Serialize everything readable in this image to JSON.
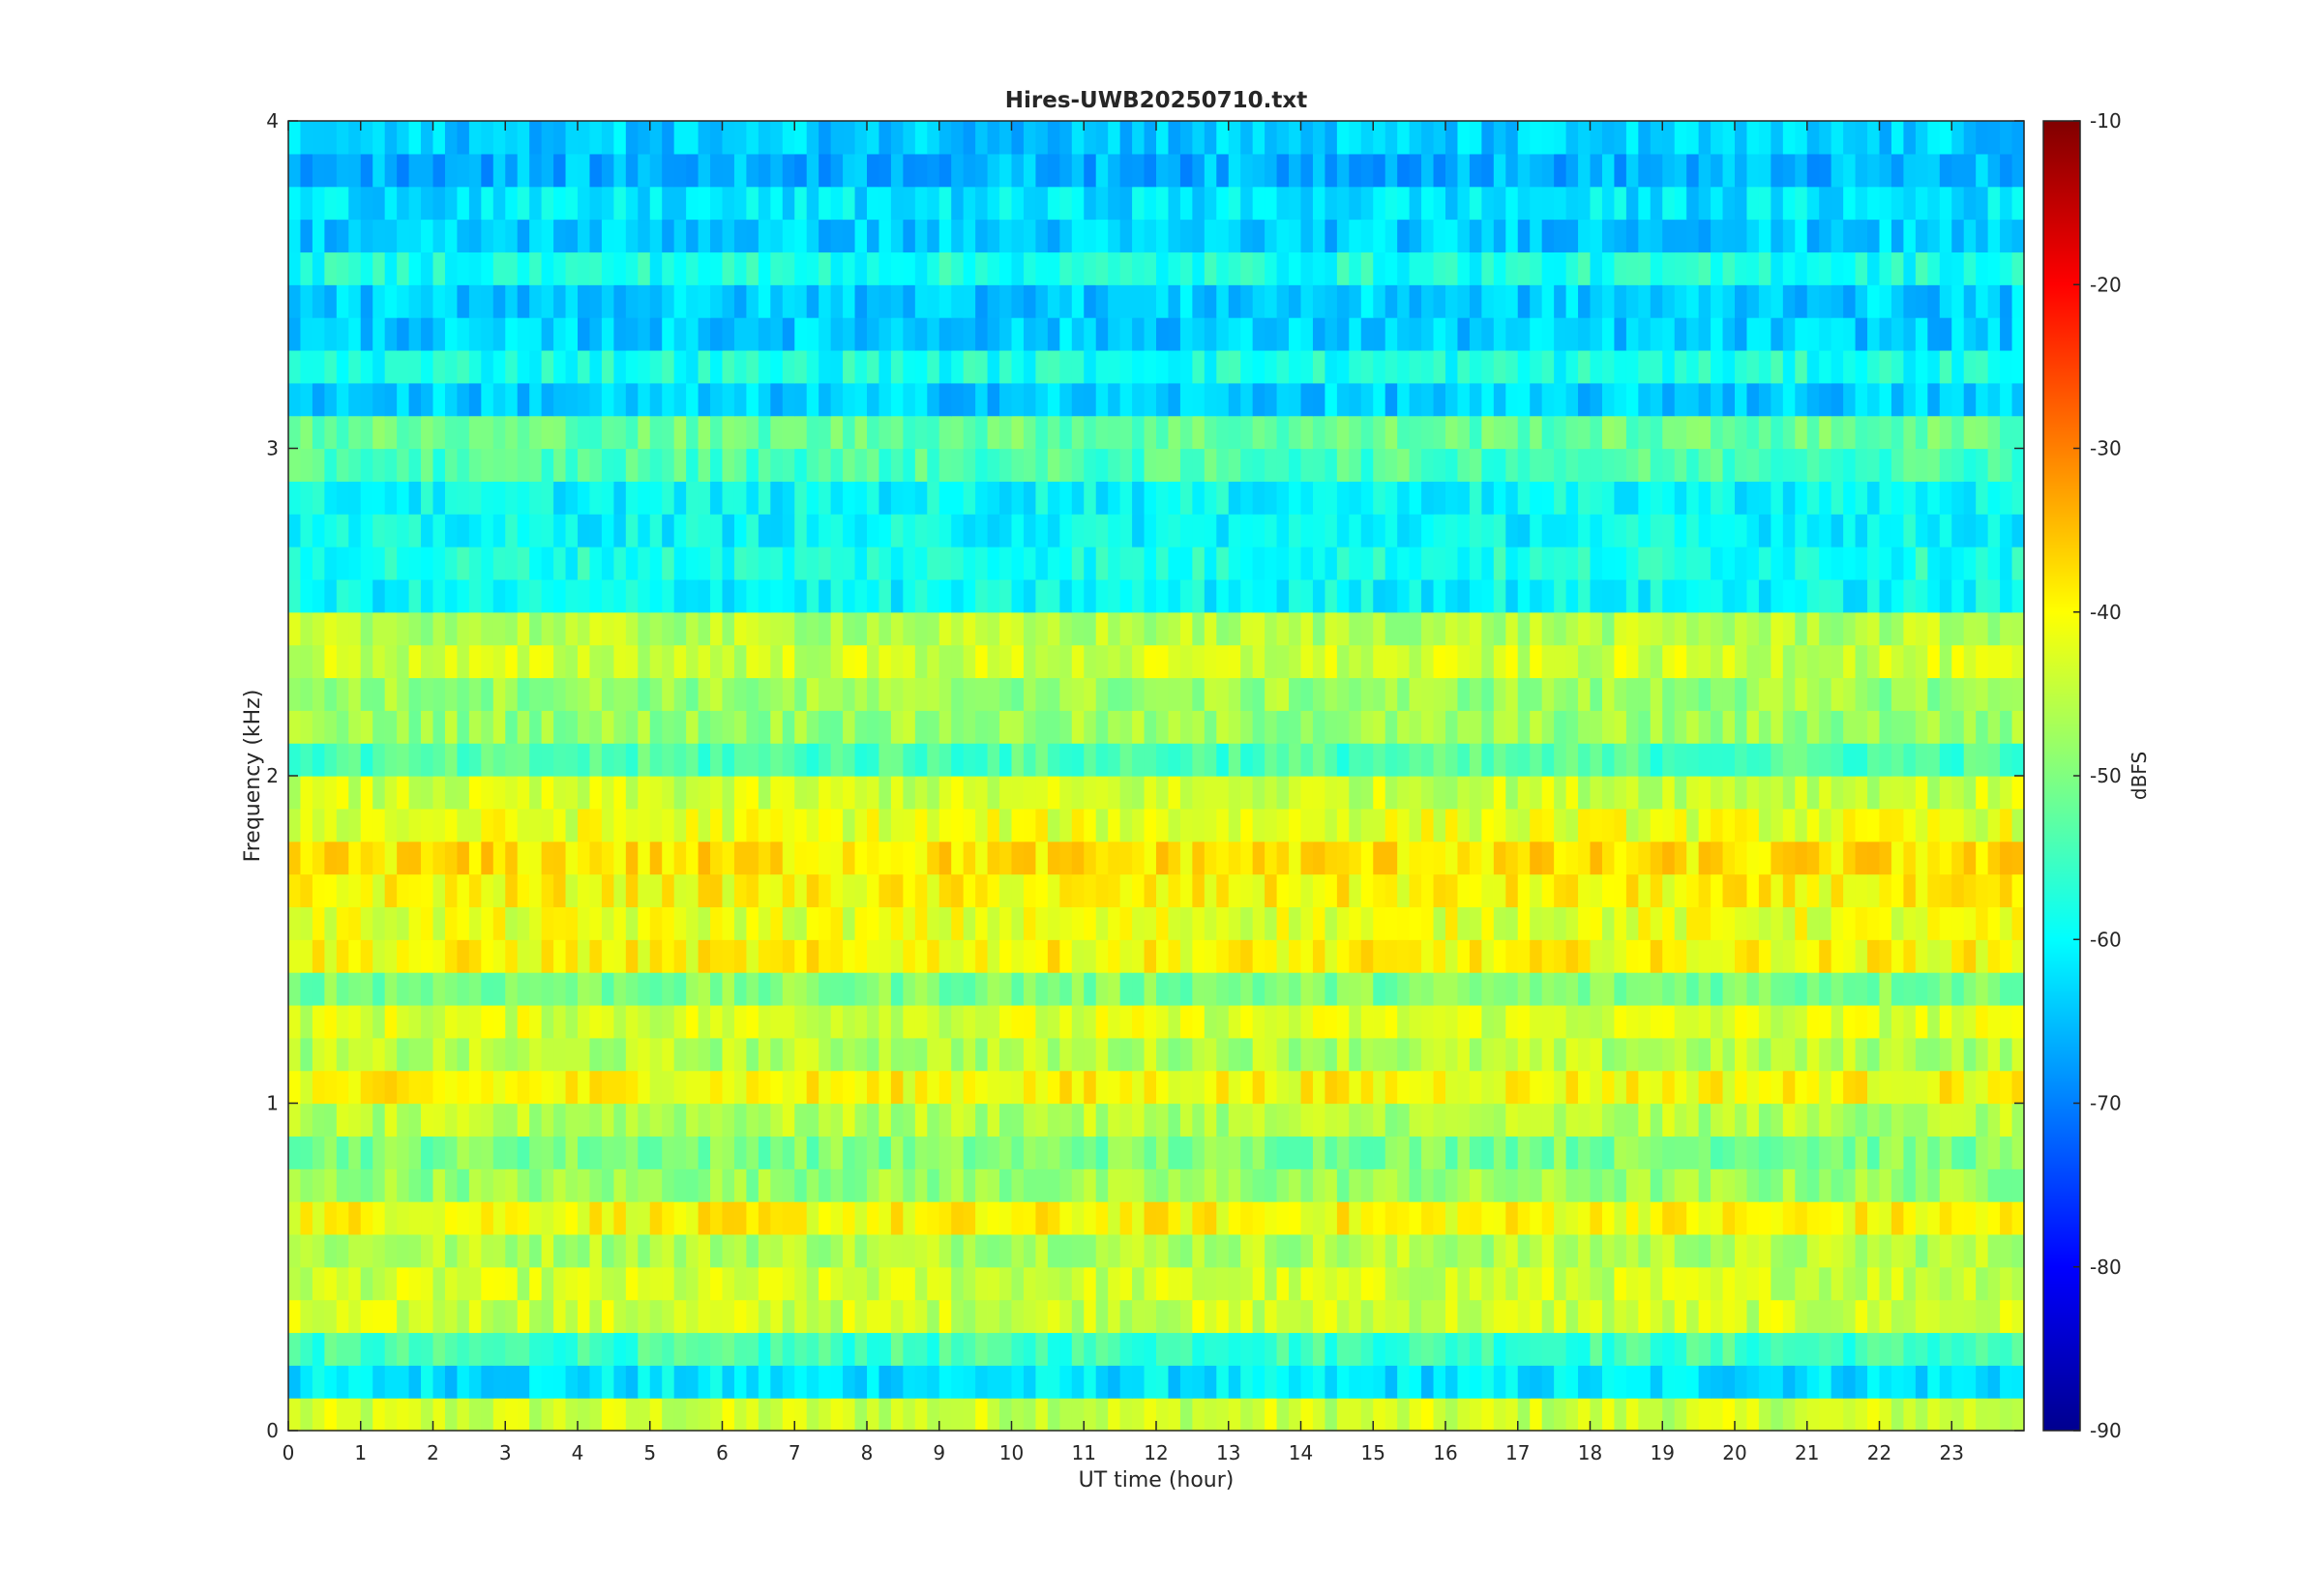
{
  "chart_data": {
    "type": "heatmap",
    "title": "Hires-UWB20250710.txt",
    "xlabel": "UT time (hour)",
    "ylabel": "Frequency (kHz)",
    "xlim": [
      0,
      24
    ],
    "ylim": [
      0,
      4
    ],
    "x_ticks": [
      "0",
      "1",
      "2",
      "3",
      "4",
      "5",
      "6",
      "7",
      "8",
      "9",
      "10",
      "11",
      "12",
      "13",
      "14",
      "15",
      "16",
      "17",
      "18",
      "19",
      "20",
      "21",
      "22",
      "23"
    ],
    "y_ticks": [
      "0",
      "1",
      "2",
      "3",
      "4"
    ],
    "colormap": "jet",
    "colorbar": {
      "label": "dBFS",
      "range": [
        -90,
        -10
      ],
      "ticks": [
        "-90",
        "-80",
        "-70",
        "-60",
        "-50",
        "-40",
        "-30",
        "-20",
        "-10"
      ]
    },
    "band_levels_dBFS": [
      {
        "freq_khz": 0.05,
        "level": -44
      },
      {
        "freq_khz": 0.15,
        "level": -62
      },
      {
        "freq_khz": 0.25,
        "level": -55
      },
      {
        "freq_khz": 0.35,
        "level": -44
      },
      {
        "freq_khz": 0.45,
        "level": -44
      },
      {
        "freq_khz": 0.55,
        "level": -46
      },
      {
        "freq_khz": 0.65,
        "level": -40
      },
      {
        "freq_khz": 0.75,
        "level": -48
      },
      {
        "freq_khz": 0.85,
        "level": -50
      },
      {
        "freq_khz": 0.95,
        "level": -46
      },
      {
        "freq_khz": 1.05,
        "level": -40
      },
      {
        "freq_khz": 1.15,
        "level": -46
      },
      {
        "freq_khz": 1.25,
        "level": -43
      },
      {
        "freq_khz": 1.35,
        "level": -50
      },
      {
        "freq_khz": 1.45,
        "level": -40
      },
      {
        "freq_khz": 1.55,
        "level": -42
      },
      {
        "freq_khz": 1.65,
        "level": -40
      },
      {
        "freq_khz": 1.75,
        "level": -38
      },
      {
        "freq_khz": 1.85,
        "level": -42
      },
      {
        "freq_khz": 1.95,
        "level": -44
      },
      {
        "freq_khz": 2.05,
        "level": -54
      },
      {
        "freq_khz": 2.15,
        "level": -48
      },
      {
        "freq_khz": 2.25,
        "level": -48
      },
      {
        "freq_khz": 2.35,
        "level": -44
      },
      {
        "freq_khz": 2.45,
        "level": -46
      },
      {
        "freq_khz": 2.55,
        "level": -60
      },
      {
        "freq_khz": 2.65,
        "level": -58
      },
      {
        "freq_khz": 2.75,
        "level": -60
      },
      {
        "freq_khz": 2.85,
        "level": -60
      },
      {
        "freq_khz": 2.95,
        "level": -54
      },
      {
        "freq_khz": 3.05,
        "level": -52
      },
      {
        "freq_khz": 3.15,
        "level": -64
      },
      {
        "freq_khz": 3.25,
        "level": -58
      },
      {
        "freq_khz": 3.35,
        "level": -64
      },
      {
        "freq_khz": 3.45,
        "level": -64
      },
      {
        "freq_khz": 3.55,
        "level": -58
      },
      {
        "freq_khz": 3.65,
        "level": -64
      },
      {
        "freq_khz": 3.75,
        "level": -62
      },
      {
        "freq_khz": 3.85,
        "level": -66
      },
      {
        "freq_khz": 3.95,
        "level": -64
      }
    ]
  }
}
